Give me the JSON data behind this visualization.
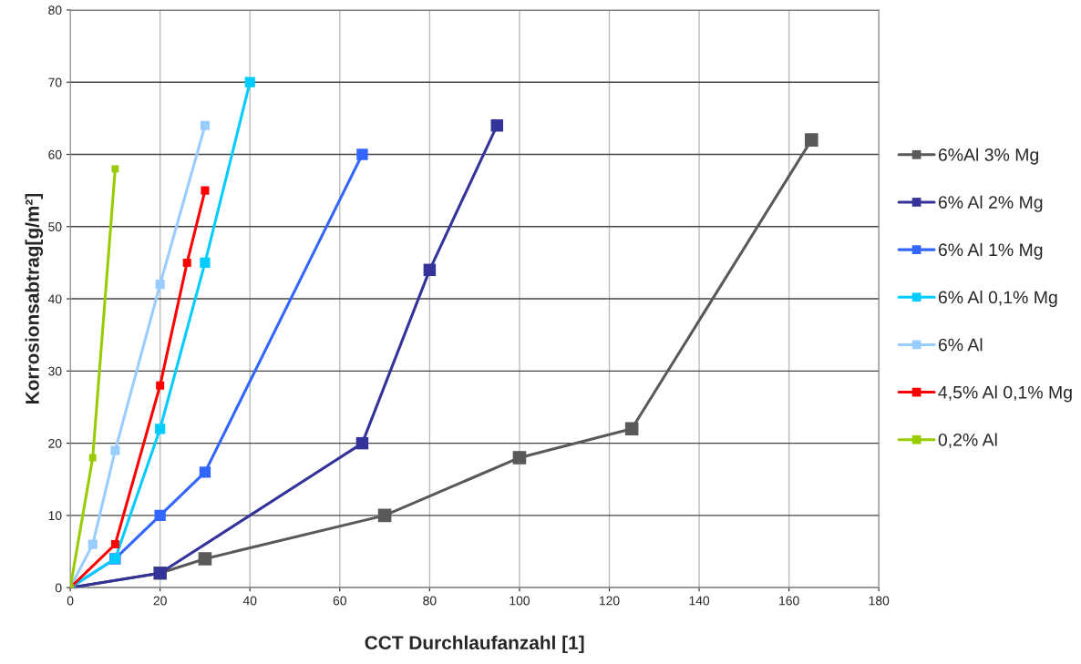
{
  "chart_data": {
    "type": "line",
    "xlabel": "CCT Durchlaufanzahl [1]",
    "ylabel": "Korrosionsabtrag[g/m²]",
    "xlim": [
      0,
      180
    ],
    "xticks": [
      0,
      20,
      40,
      60,
      80,
      100,
      120,
      140,
      160,
      180
    ],
    "ylim": [
      0,
      80
    ],
    "yticks": [
      0,
      10,
      20,
      30,
      40,
      50,
      60,
      70,
      80
    ],
    "grid": true,
    "legend": "right",
    "marker": "square",
    "line_style": "solid",
    "series": [
      {
        "name": "6%Al 3% Mg",
        "color": "#595959",
        "x": [
          0,
          20,
          30,
          70,
          100,
          125,
          165
        ],
        "values": [
          0,
          2,
          4,
          10,
          18,
          22,
          62
        ]
      },
      {
        "name": "6% Al 2% Mg",
        "color": "#333399",
        "x": [
          0,
          20,
          65,
          80,
          95
        ],
        "values": [
          0,
          2,
          20,
          44,
          64
        ]
      },
      {
        "name": "6% Al 1% Mg",
        "color": "#3366ff",
        "x": [
          0,
          10,
          20,
          30,
          65
        ],
        "values": [
          0,
          4,
          10,
          16,
          60
        ]
      },
      {
        "name": "6% Al 0,1% Mg",
        "color": "#00ccff",
        "x": [
          0,
          10,
          20,
          30,
          40
        ],
        "values": [
          0,
          4,
          22,
          45,
          70
        ]
      },
      {
        "name": "6% Al",
        "color": "#99ccff",
        "x": [
          0,
          5,
          10,
          20,
          30
        ],
        "values": [
          0,
          6,
          19,
          42,
          64
        ]
      },
      {
        "name": "4,5% Al 0,1% Mg",
        "color": "#ff0000",
        "x": [
          0,
          10,
          20,
          26,
          30
        ],
        "values": [
          0,
          6,
          28,
          45,
          55
        ]
      },
      {
        "name": "0,2% Al",
        "color": "#99cc00",
        "x": [
          0,
          5,
          10
        ],
        "values": [
          0,
          18,
          58
        ]
      }
    ]
  }
}
